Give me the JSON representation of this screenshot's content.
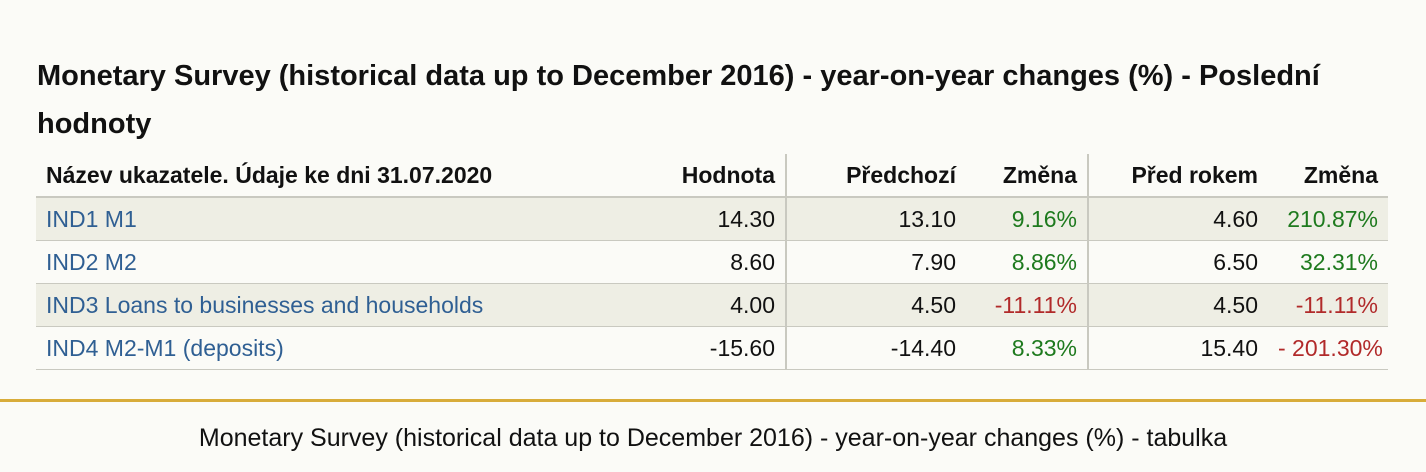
{
  "title": "Monetary Survey (historical data up to December 2016) - year-on-year changes (%) - Poslední hodnoty",
  "table": {
    "headers": {
      "name": "Název ukazatele. Údaje ke dni 31.07.2020",
      "value": "Hodnota",
      "previous": "Předchozí",
      "change1": "Změna",
      "year_ago": "Před rokem",
      "change2": "Změna"
    },
    "rows": [
      {
        "name": "IND1 M1",
        "value": "14.30",
        "previous": "13.10",
        "change1": "9.16%",
        "year_ago": "4.60",
        "change2": "210.87%"
      },
      {
        "name": "IND2 M2",
        "value": "8.60",
        "previous": "7.90",
        "change1": "8.86%",
        "year_ago": "6.50",
        "change2": "32.31%"
      },
      {
        "name": "IND3 Loans to businesses and households",
        "value": "4.00",
        "previous": "4.50",
        "change1": "-11.11%",
        "year_ago": "4.50",
        "change2": "-11.11%"
      },
      {
        "name": "IND4 M2-M1 (deposits)",
        "value": "-15.60",
        "previous": "-14.40",
        "change1": "8.33%",
        "year_ago": "15.40",
        "change2": "- 201.30%"
      }
    ]
  },
  "colors": {
    "positive": "#1e7a1e",
    "negative": "#b12a2a",
    "link": "#2f5f93",
    "accent_rule": "#d8ac3a"
  },
  "caption": "Monetary Survey (historical data up to December 2016) - year-on-year changes (%) - tabulka"
}
